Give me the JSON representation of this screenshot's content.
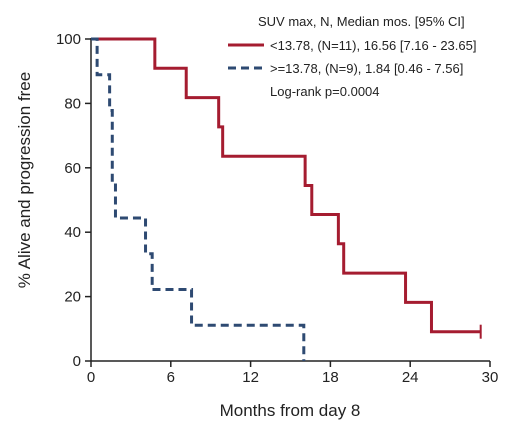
{
  "chart_data": {
    "type": "line",
    "title": "",
    "xlabel": "Months from day 8",
    "ylabel": "% Alive and progression free",
    "xlim": [
      0,
      30
    ],
    "ylim": [
      0,
      100
    ],
    "x_ticks": [
      0,
      6,
      12,
      18,
      24,
      30
    ],
    "y_ticks": [
      0,
      20,
      40,
      60,
      80,
      100
    ],
    "x_tick_labels": [
      "0",
      "6",
      "12",
      "18",
      "24",
      "30"
    ],
    "y_tick_labels": [
      "0",
      "20",
      "40",
      "60",
      "80",
      "100"
    ],
    "grid": false,
    "legend_position": "top-right",
    "legend_title": "SUV max, N, Median mos. [95% CI]",
    "annotation": "Log-rank p=0.0004",
    "series": [
      {
        "name": "<13.78, (N=11), 16.56 [7.16 - 23.65]",
        "color": "#a51c30",
        "style": "solid",
        "step": true,
        "x": [
          0,
          4.8,
          7.16,
          9.6,
          9.9,
          16.1,
          16.6,
          18.6,
          19.0,
          23.65,
          25.6,
          29.3
        ],
        "y": [
          100,
          90.9,
          81.8,
          72.7,
          63.6,
          54.5,
          45.5,
          36.4,
          27.3,
          18.2,
          9.1,
          9.1
        ],
        "censored": [
          29.3
        ]
      },
      {
        "name": ">=13.78, (N=9), 1.84 [0.46 - 7.56]",
        "color": "#2e4a72",
        "style": "dashed",
        "step": true,
        "x": [
          0,
          0.46,
          1.4,
          1.6,
          1.84,
          4.1,
          4.6,
          5.0,
          7.56,
          16.0
        ],
        "y": [
          100,
          88.9,
          77.8,
          55.6,
          44.4,
          33.3,
          22.2,
          22.2,
          11.1,
          0
        ],
        "censored": []
      }
    ]
  }
}
